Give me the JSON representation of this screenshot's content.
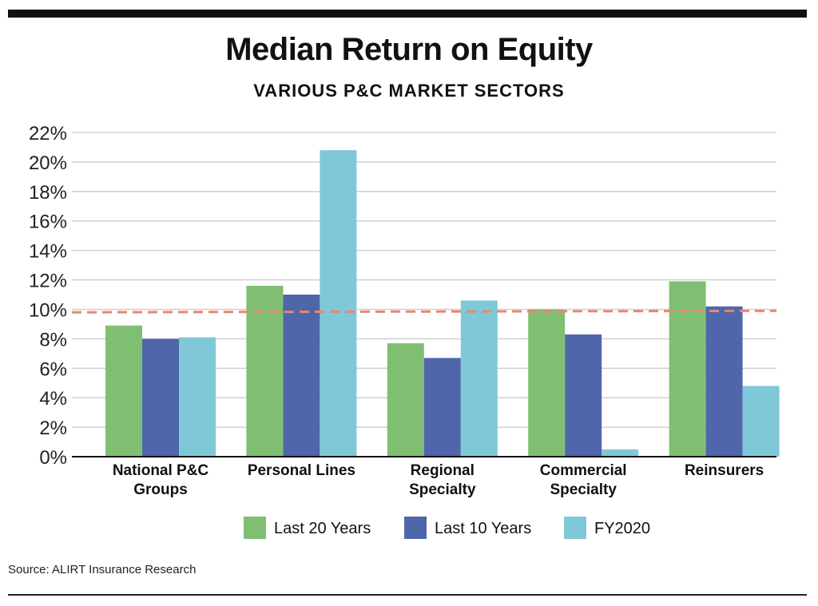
{
  "title": "Median Return on Equity",
  "subtitle": "VARIOUS P&C MARKET SECTORS",
  "source": "Source:  ALIRT Insurance Research",
  "colors": {
    "last20": "#80bf72",
    "last10": "#4f66ab",
    "fy2020": "#7fc8d8",
    "reference": "#e8866e",
    "grid": "#d0d0d0"
  },
  "chart_data": {
    "type": "bar",
    "title": "Median Return on Equity",
    "subtitle": "VARIOUS P&C MARKET SECTORS",
    "categories": [
      [
        "National P&C",
        "Groups"
      ],
      [
        "Personal Lines"
      ],
      [
        "Regional",
        "Specialty"
      ],
      [
        "Commercial",
        "Specialty"
      ],
      [
        "Reinsurers"
      ]
    ],
    "series": [
      {
        "name": "Last 20 Years",
        "color": "#80bf72",
        "values": [
          8.9,
          11.6,
          7.7,
          10.0,
          11.9
        ]
      },
      {
        "name": "Last 10 Years",
        "color": "#4f66ab",
        "values": [
          8.0,
          11.0,
          6.7,
          8.3,
          10.2
        ]
      },
      {
        "name": "FY2020",
        "color": "#7fc8d8",
        "values": [
          8.1,
          20.8,
          10.6,
          0.5,
          4.8
        ]
      }
    ],
    "reference_line": {
      "style": "dashed",
      "color": "#e8866e",
      "start": 9.8,
      "end": 9.9
    },
    "yticks": [
      "0%",
      "2%",
      "4%",
      "6%",
      "8%",
      "10%",
      "12%",
      "14%",
      "16%",
      "18%",
      "20%",
      "22%"
    ],
    "ylim": [
      0,
      22
    ],
    "grid": true,
    "legend_position": "bottom"
  }
}
